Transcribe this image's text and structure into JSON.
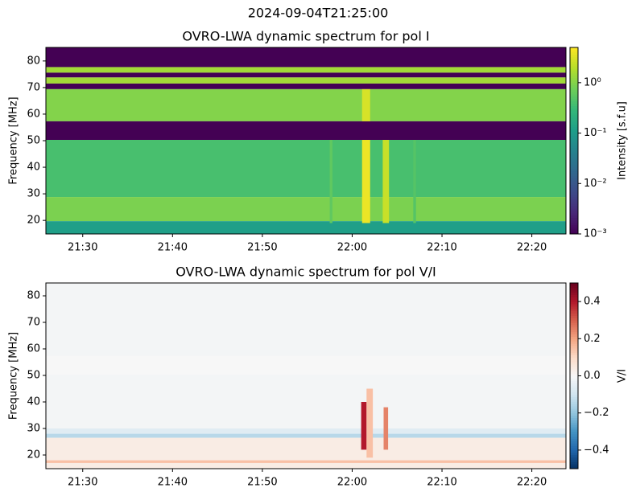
{
  "title": "2024-09-04T21:25:00",
  "chart_data": [
    {
      "type": "heatmap",
      "title": "OVRO-LWA dynamic spectrum for pol I",
      "y_label": "Frequency [MHz]",
      "xlim": [
        1285.9,
        1343.8
      ],
      "xticks": [
        {
          "value": 1290,
          "label": "21:30"
        },
        {
          "value": 1300,
          "label": "21:40"
        },
        {
          "value": 1310,
          "label": "21:50"
        },
        {
          "value": 1320,
          "label": "22:00"
        },
        {
          "value": 1330,
          "label": "22:10"
        },
        {
          "value": 1340,
          "label": "22:20"
        }
      ],
      "ylim": [
        14.9,
        85.1
      ],
      "yticks": [
        20,
        30,
        40,
        50,
        60,
        70,
        80
      ],
      "colormap": "viridis",
      "color_scale": "log",
      "colorbar_label": "Intensity [s.f.u]",
      "clim": [
        0.001,
        5
      ],
      "cticks": [
        {
          "value": 0.001,
          "label": "10⁻³"
        },
        {
          "value": 0.01,
          "label": "10⁻²"
        },
        {
          "value": 0.1,
          "label": "10⁻¹"
        },
        {
          "value": 1,
          "label": "10⁰"
        }
      ],
      "cells": [
        {
          "x": [
            1285.9,
            1343.8
          ],
          "y": [
            77.7,
            85.1
          ],
          "value": 0.001
        },
        {
          "x": [
            1285.9,
            1343.8
          ],
          "y": [
            75.6,
            77.7
          ],
          "value": 1.5
        },
        {
          "x": [
            1285.9,
            1343.8
          ],
          "y": [
            73.8,
            75.6
          ],
          "value": 0.001
        },
        {
          "x": [
            1285.9,
            1343.8
          ],
          "y": [
            71.5,
            73.8
          ],
          "value": 1.5
        },
        {
          "x": [
            1285.9,
            1343.8
          ],
          "y": [
            69.4,
            71.5
          ],
          "value": 0.001
        },
        {
          "x": [
            1285.9,
            1343.8
          ],
          "y": [
            57.3,
            69.4
          ],
          "value": 1.0
        },
        {
          "x": [
            1285.9,
            1343.8
          ],
          "y": [
            50.3,
            57.3
          ],
          "value": 0.001
        },
        {
          "x": [
            1285.9,
            1343.8
          ],
          "y": [
            28.8,
            50.3
          ],
          "value": 0.4
        },
        {
          "x": [
            1285.9,
            1343.8
          ],
          "y": [
            19.7,
            28.8
          ],
          "value": 0.9
        },
        {
          "x": [
            1285.9,
            1343.8
          ],
          "y": [
            14.9,
            19.7
          ],
          "value": 0.12
        },
        {
          "x": [
            1321.1,
            1322.0
          ],
          "y": [
            19,
            50.3
          ],
          "value": 4
        },
        {
          "x": [
            1321.1,
            1322.0
          ],
          "y": [
            57.3,
            69.4
          ],
          "value": 3
        },
        {
          "x": [
            1323.4,
            1324.1
          ],
          "y": [
            19,
            50.3
          ],
          "value": 2.5
        },
        {
          "x": [
            1317.5,
            1317.8
          ],
          "y": [
            19,
            50.3
          ],
          "value": 0.6
        },
        {
          "x": [
            1326.8,
            1327.1
          ],
          "y": [
            19,
            50.3
          ],
          "value": 0.5
        }
      ]
    },
    {
      "type": "heatmap",
      "title": "OVRO-LWA dynamic spectrum for pol V/I",
      "y_label": "Frequency [MHz]",
      "xlim": [
        1285.9,
        1343.8
      ],
      "xticks": [
        {
          "value": 1290,
          "label": "21:30"
        },
        {
          "value": 1300,
          "label": "21:40"
        },
        {
          "value": 1310,
          "label": "21:50"
        },
        {
          "value": 1320,
          "label": "22:00"
        },
        {
          "value": 1330,
          "label": "22:10"
        },
        {
          "value": 1340,
          "label": "22:20"
        }
      ],
      "ylim": [
        14.85,
        84.85
      ],
      "yticks": [
        20,
        30,
        40,
        50,
        60,
        70,
        80
      ],
      "colormap": "RdBu_r",
      "color_scale": "linear",
      "colorbar_label": "V/I",
      "clim": [
        -0.5,
        0.5
      ],
      "cticks": [
        {
          "value": -0.4,
          "label": "−0.4"
        },
        {
          "value": -0.2,
          "label": "−0.2"
        },
        {
          "value": 0,
          "label": "0.0"
        },
        0.2,
        0.4
      ],
      "cells": [
        {
          "x": [
            1285.9,
            1343.8
          ],
          "y": [
            30,
            84.85
          ],
          "value": -0.01
        },
        {
          "x": [
            1285.9,
            1343.8
          ],
          "y": [
            50.3,
            57.3
          ],
          "value": 0
        },
        {
          "x": [
            1285.9,
            1343.8
          ],
          "y": [
            28,
            30
          ],
          "value": -0.06
        },
        {
          "x": [
            1285.9,
            1343.8
          ],
          "y": [
            26.5,
            28
          ],
          "value": -0.14
        },
        {
          "x": [
            1285.9,
            1343.8
          ],
          "y": [
            14.85,
            26.5
          ],
          "value": 0.04
        },
        {
          "x": [
            1285.9,
            1343.8
          ],
          "y": [
            17,
            18
          ],
          "value": 0.15
        },
        {
          "x": [
            1321.0,
            1321.6
          ],
          "y": [
            22,
            40
          ],
          "value": 0.4
        },
        {
          "x": [
            1321.6,
            1322.3
          ],
          "y": [
            19,
            45
          ],
          "value": 0.15
        },
        {
          "x": [
            1323.5,
            1324.0
          ],
          "y": [
            22,
            38
          ],
          "value": 0.25
        }
      ]
    }
  ]
}
